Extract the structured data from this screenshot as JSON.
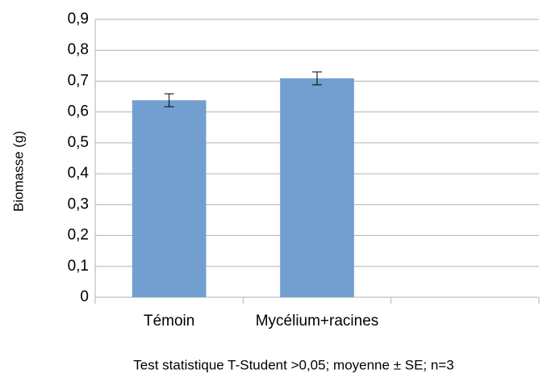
{
  "chart_data": {
    "type": "bar",
    "y_label": "Biomasse (g)",
    "note": "Test  statistique T-Student >0,05; moyenne ± SE; n=3",
    "categories": [
      "Témoin",
      "Mycélium+racines",
      null
    ],
    "values": [
      0.638,
      0.709,
      null
    ],
    "errors": [
      0.021,
      0.021,
      null
    ],
    "color": "#729fcf",
    "ylim": [
      0,
      0.9
    ],
    "yticks": [
      0,
      {
        "value": 0.1,
        "label": "0,1"
      },
      {
        "value": 0.2,
        "label": "0,2"
      },
      {
        "value": 0.3,
        "label": "0,3"
      },
      {
        "value": 0.4,
        "label": "0,4"
      },
      {
        "value": 0.5,
        "label": "0,5"
      },
      {
        "value": 0.6,
        "label": "0,6"
      },
      {
        "value": 0.7,
        "label": "0,7"
      },
      {
        "value": 0.8,
        "label": "0,8"
      },
      {
        "value": 0.9,
        "label": "0,9"
      }
    ],
    "grid": true
  }
}
